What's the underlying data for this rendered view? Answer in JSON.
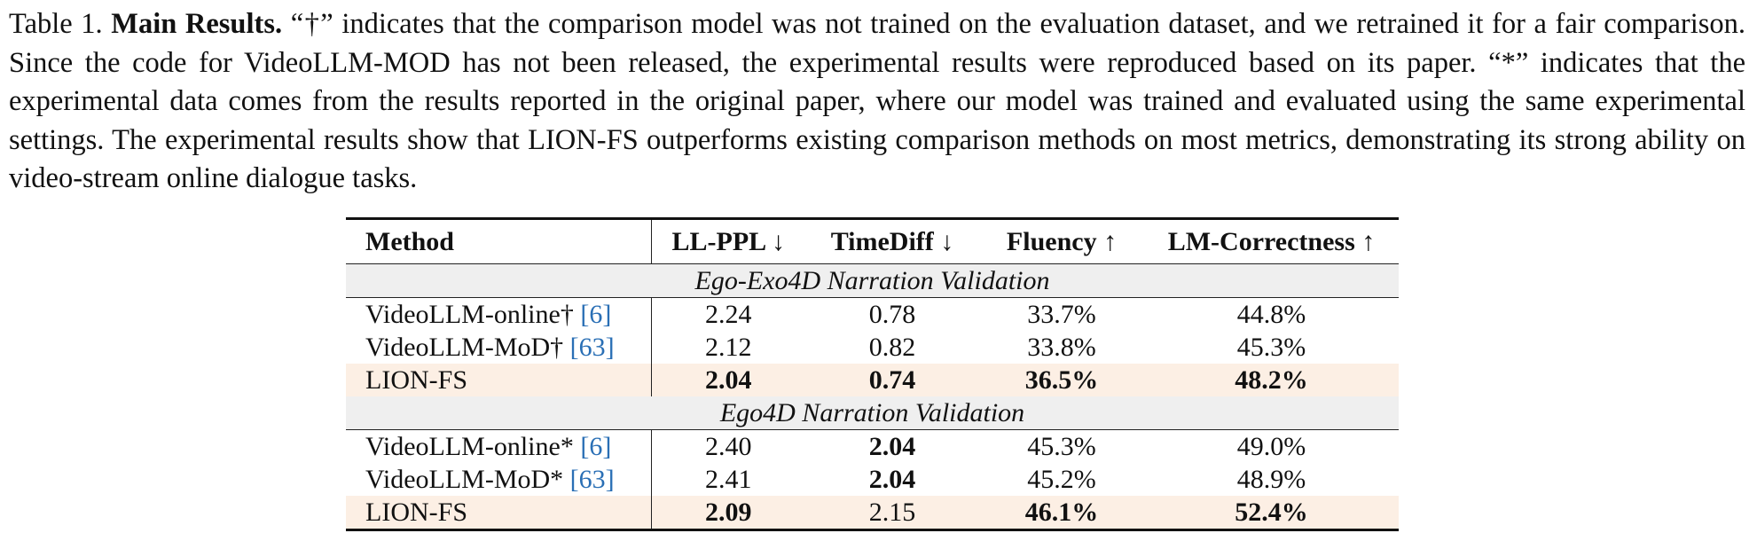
{
  "caption": {
    "label": "Table 1.",
    "title": "Main Results.",
    "text": "“†” indicates that the comparison model was not trained on the evaluation dataset, and we retrained it for a fair comparison. Since the code for VideoLLM-MOD has not been released, the experimental results were reproduced based on its paper. “*” indicates that the experimental data comes from the results reported in the original paper, where our model was trained and evaluated using the same experimental settings. The experimental results show that LION-FS outperforms existing comparison methods on most metrics, demonstrating its strong ability on video-stream online dialogue tasks."
  },
  "table": {
    "header": [
      "Method",
      "LL-PPL ↓",
      "TimeDiff ↓",
      "Fluency ↑",
      "LM-Correctness ↑"
    ],
    "sections": [
      {
        "title": "Ego-Exo4D Narration Validation",
        "rows": [
          {
            "method": "VideoLLM-online†",
            "citation": "[6]",
            "cells": [
              "2.24",
              "0.78",
              "33.7%",
              "44.8%"
            ],
            "bold": [
              false,
              false,
              false,
              false
            ],
            "highlight": false
          },
          {
            "method": "VideoLLM-MoD†",
            "citation": "[63]",
            "cells": [
              "2.12",
              "0.82",
              "33.8%",
              "45.3%"
            ],
            "bold": [
              false,
              false,
              false,
              false
            ],
            "highlight": false
          },
          {
            "method": "LION-FS",
            "cells": [
              "2.04",
              "0.74",
              "36.5%",
              "48.2%"
            ],
            "bold": [
              true,
              true,
              true,
              true
            ],
            "highlight": true
          }
        ]
      },
      {
        "title": "Ego4D Narration Validation",
        "rows": [
          {
            "method": "VideoLLM-online*",
            "citation": "[6]",
            "cells": [
              "2.40",
              "2.04",
              "45.3%",
              "49.0%"
            ],
            "bold": [
              false,
              true,
              false,
              false
            ],
            "highlight": false
          },
          {
            "method": "VideoLLM-MoD*",
            "citation": "[63]",
            "cells": [
              "2.41",
              "2.04",
              "45.2%",
              "48.9%"
            ],
            "bold": [
              false,
              true,
              false,
              false
            ],
            "highlight": false
          },
          {
            "method": "LION-FS",
            "cells": [
              "2.09",
              "2.15",
              "46.1%",
              "52.4%"
            ],
            "bold": [
              true,
              false,
              true,
              true
            ],
            "highlight": true
          }
        ]
      }
    ]
  }
}
